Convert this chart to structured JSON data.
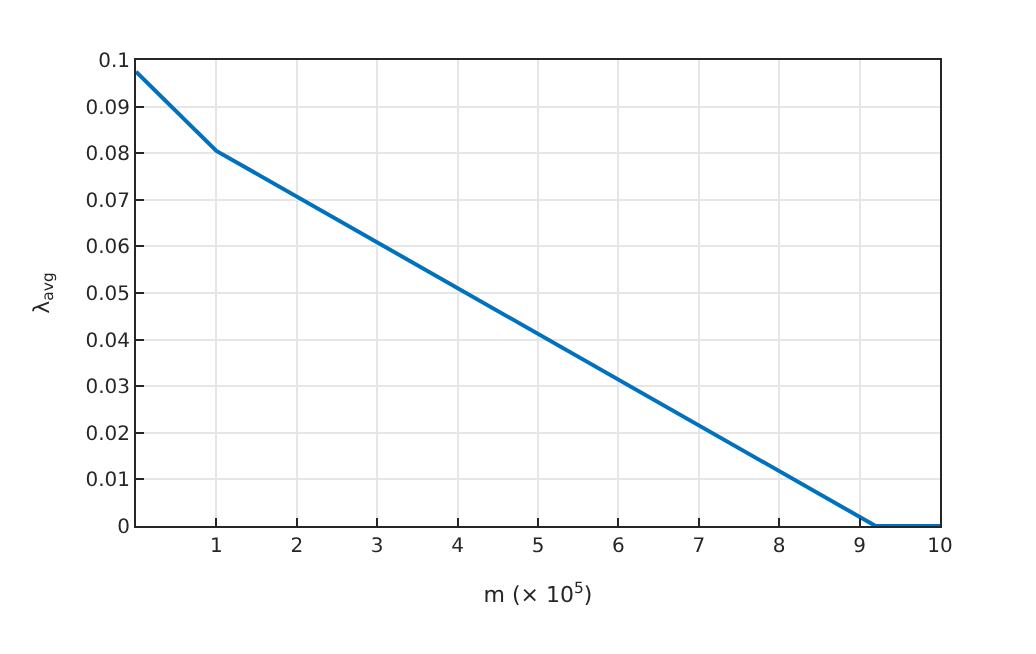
{
  "chart_data": {
    "type": "line",
    "xlabel": "m (× 10$^{5}$)",
    "ylabel": "λ$_{avg}$",
    "x": [
      0,
      1,
      9.2,
      10
    ],
    "series": [
      {
        "color": "#0072bd",
        "values": [
          0.0975,
          0.0805,
          0,
          0
        ]
      }
    ],
    "xlim": [
      0,
      10
    ],
    "xticks": [
      1,
      2,
      3,
      4,
      5,
      6,
      7,
      8,
      9,
      10
    ],
    "ylim": [
      0,
      0.1
    ],
    "yticks": [
      0,
      0.01,
      0.02,
      0.03,
      0.04,
      0.05,
      0.06,
      0.07,
      0.08,
      0.09,
      0.1
    ],
    "grid": true,
    "marker": "none",
    "line_style": "solid",
    "legend": false
  }
}
